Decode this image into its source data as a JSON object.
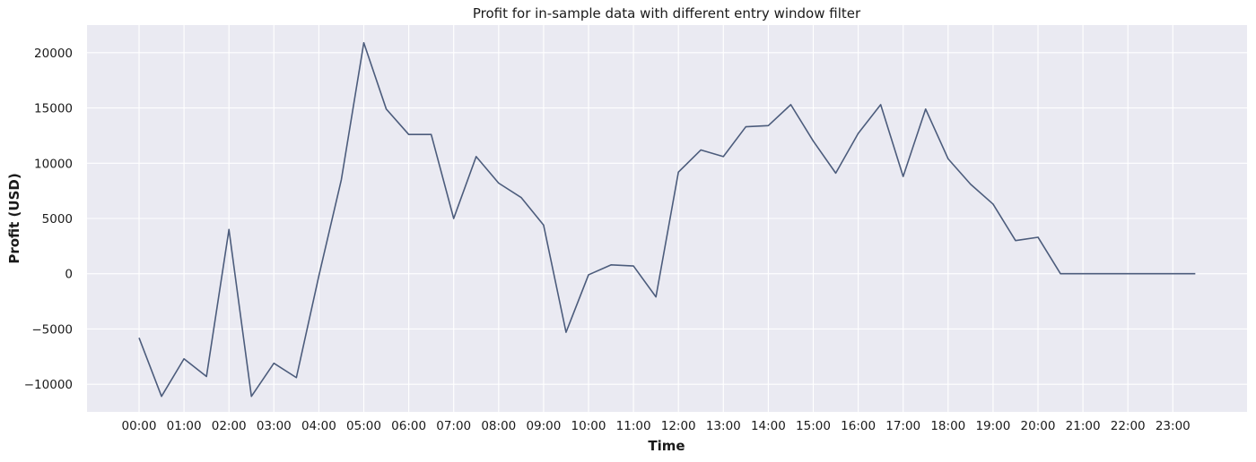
{
  "chart_data": {
    "type": "line",
    "title": "Profit for in-sample data with different entry window filter",
    "xlabel": "Time",
    "ylabel": "Profit (USD)",
    "x": [
      "00:00",
      "00:30",
      "01:00",
      "01:30",
      "02:00",
      "02:30",
      "03:00",
      "03:30",
      "04:00",
      "04:30",
      "05:00",
      "05:30",
      "06:00",
      "06:30",
      "07:00",
      "07:30",
      "08:00",
      "08:30",
      "09:00",
      "09:30",
      "10:00",
      "10:30",
      "11:00",
      "11:30",
      "12:00",
      "12:30",
      "13:00",
      "13:30",
      "14:00",
      "14:30",
      "15:00",
      "15:30",
      "16:00",
      "16:30",
      "17:00",
      "17:30",
      "18:00",
      "18:30",
      "19:00",
      "19:30",
      "20:00",
      "20:30",
      "21:00",
      "21:30",
      "22:00",
      "22:30",
      "23:00",
      "23:30"
    ],
    "x_ticks": [
      "00:00",
      "01:00",
      "02:00",
      "03:00",
      "04:00",
      "05:00",
      "06:00",
      "07:00",
      "08:00",
      "09:00",
      "10:00",
      "11:00",
      "12:00",
      "13:00",
      "14:00",
      "15:00",
      "16:00",
      "17:00",
      "18:00",
      "19:00",
      "20:00",
      "21:00",
      "22:00",
      "23:00"
    ],
    "series": [
      {
        "values": [
          -5800,
          -11100,
          -7700,
          -9300,
          4000,
          -11100,
          -8100,
          -9400,
          -200,
          8500,
          20900,
          14900,
          12600,
          12600,
          5000,
          10600,
          8200,
          6900,
          4400,
          -5300,
          -100,
          800,
          700,
          -2100,
          9200,
          11200,
          10600,
          13300,
          13400,
          15300,
          12000,
          9100,
          12700,
          15300,
          8800,
          14900,
          10400,
          8100,
          6300,
          3000,
          3300,
          0,
          0,
          0,
          0,
          0,
          0,
          0
        ],
        "color": "#4c5c7c"
      }
    ],
    "y_ticks": [
      -10000,
      -5000,
      0,
      5000,
      10000,
      15000,
      20000
    ],
    "y_tick_labels": [
      "−10000",
      "−5000",
      "0",
      "5000",
      "10000",
      "15000",
      "20000"
    ],
    "ylim": [
      -12500,
      22500
    ],
    "grid": true,
    "background": "#eaeaf2"
  }
}
